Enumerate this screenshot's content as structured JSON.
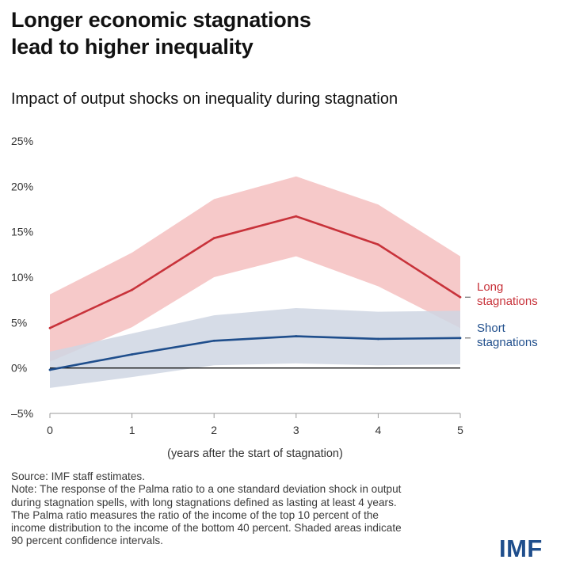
{
  "headline": {
    "line1": "Longer economic stagnations",
    "line2": "lead to higher inequality"
  },
  "chart_data": {
    "type": "line",
    "title": "Impact of output shocks on inequality during stagnation",
    "xlabel": "(years after the start of stagnation)",
    "ylabel": "",
    "x": [
      0,
      1,
      2,
      3,
      4,
      5
    ],
    "xticks": [
      "0",
      "1",
      "2",
      "3",
      "4",
      "5"
    ],
    "yticks": [
      -5,
      0,
      5,
      10,
      15,
      20,
      25
    ],
    "ytick_labels": [
      "–5%",
      "0%",
      "5%",
      "10%",
      "15%",
      "20%",
      "25%"
    ],
    "ylim": [
      -5,
      25
    ],
    "xlim": [
      0,
      5
    ],
    "zero_line": true,
    "grid": false,
    "series": [
      {
        "name": "Long stagnations",
        "label_lines": [
          "Long",
          "stagnations"
        ],
        "color": "#c8323a",
        "band_color": "#f6c9c9",
        "values": [
          4.4,
          8.6,
          14.3,
          16.7,
          13.6,
          7.8
        ],
        "lower": [
          0.7,
          4.5,
          10.0,
          12.3,
          9.0,
          4.4
        ],
        "upper": [
          8.1,
          12.7,
          18.6,
          21.1,
          18.0,
          12.3
        ]
      },
      {
        "name": "Short stagnations",
        "label_lines": [
          "Short",
          "stagnations"
        ],
        "color": "#1f4e8c",
        "band_color": "#cfd6e3",
        "values": [
          -0.2,
          1.5,
          3.0,
          3.5,
          3.2,
          3.3
        ],
        "lower": [
          -2.2,
          -1.0,
          0.3,
          0.5,
          0.3,
          0.4
        ],
        "upper": [
          1.8,
          3.8,
          5.8,
          6.6,
          6.2,
          6.3
        ]
      }
    ]
  },
  "notes": {
    "source": "Source: IMF staff estimates.",
    "note_lines": [
      "Note: The response of the Palma ratio to a one standard deviation shock in output",
      "during stagnation spells, with long stagnations defined as lasting at least 4 years.",
      "The Palma ratio measures the ratio of the income of the top 10 percent of the",
      "income distribution to the income of the bottom 40 percent. Shaded areas indicate",
      "90 percent confidence intervals."
    ]
  },
  "logo": "IMF"
}
